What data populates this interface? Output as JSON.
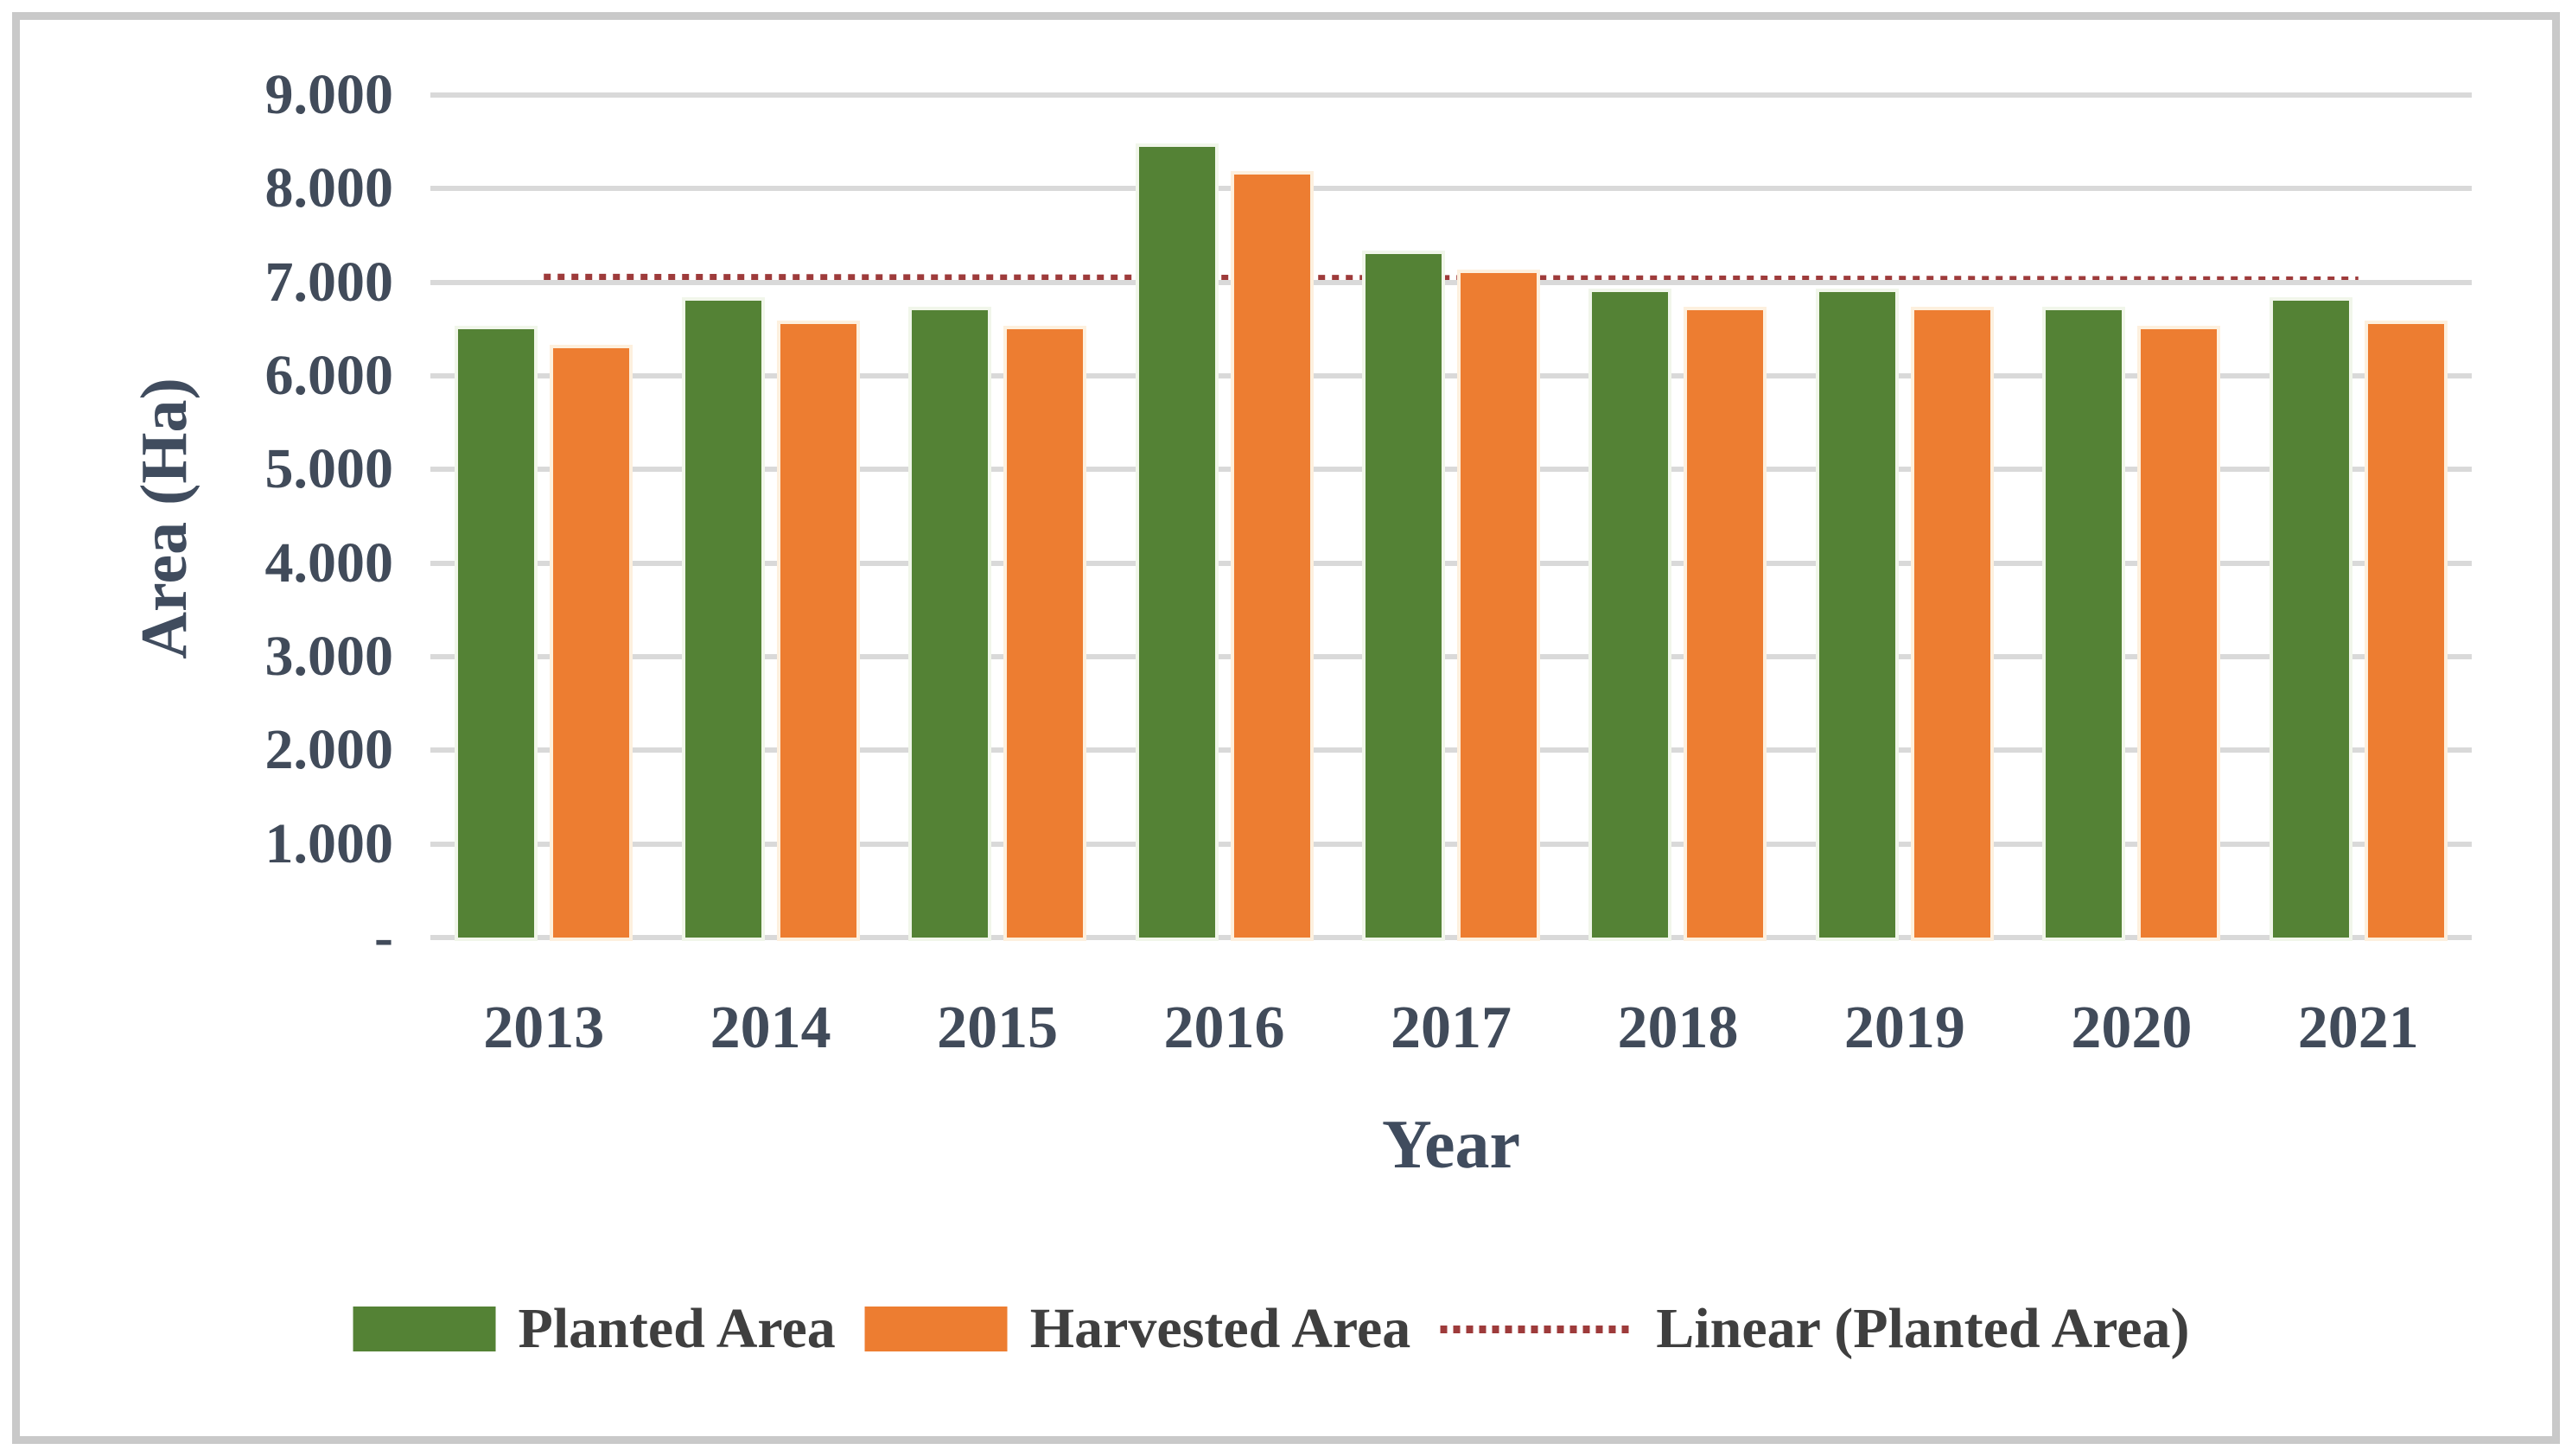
{
  "chart_data": {
    "type": "bar",
    "title": "",
    "categories": [
      "2013",
      "2014",
      "2015",
      "2016",
      "2017",
      "2018",
      "2019",
      "2020",
      "2021"
    ],
    "series": [
      {
        "name": "Planted Area",
        "color": "#548235",
        "values": [
          6500,
          6800,
          6700,
          8450,
          7300,
          6900,
          6900,
          6700,
          6800
        ]
      },
      {
        "name": "Harvested Area",
        "color": "#ED7D31",
        "values": [
          6300,
          6550,
          6500,
          8150,
          7100,
          6700,
          6700,
          6500,
          6550
        ]
      }
    ],
    "trendline": {
      "name": "Linear (Planted Area)",
      "color": "#9E3B3B",
      "style": "dotted",
      "series_ref": "Planted Area",
      "start_value": 7050,
      "end_value": 7020
    },
    "xlabel": "Year",
    "ylabel": "Area (Ha)",
    "ylim": [
      0,
      9000
    ],
    "ytick_step": 1000,
    "ytick_labels": [
      "-",
      "1.000",
      "2.000",
      "3.000",
      "4.000",
      "5.000",
      "6.000",
      "7.000",
      "8.000",
      "9.000"
    ],
    "grid": true,
    "gridline_color": "#D9D9D9",
    "axis_text_color": "#414B5A",
    "legend_position": "bottom",
    "legend_items": [
      "Planted Area",
      "Harvested Area",
      "Linear (Planted Area)"
    ]
  }
}
